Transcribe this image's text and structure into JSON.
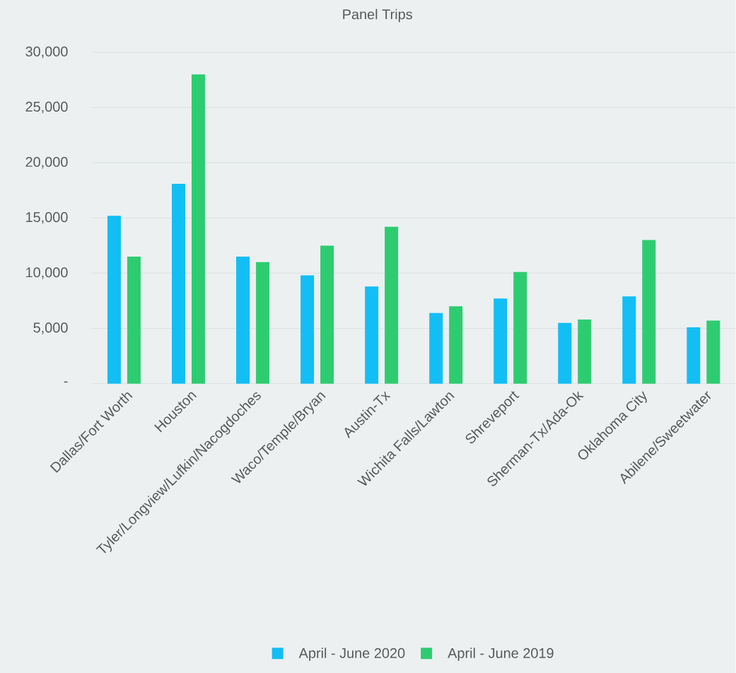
{
  "chart_data": {
    "type": "bar",
    "title": "Panel Trips",
    "categories": [
      "Dallas/Fort Worth",
      "Houston",
      "Tyler/Longview/Lufkin/Nacogdoches",
      "Waco/Temple/Bryan",
      "Austin-Tx",
      "Wichita Falls/Lawton",
      "Shreveport",
      "Sherman-Tx/Ada-Ok",
      "Oklahoma City",
      "Abilene/Sweetwater"
    ],
    "series": [
      {
        "name": "April - June 2020",
        "color": "#13bef5",
        "values": [
          15200,
          18100,
          11500,
          9800,
          8800,
          6400,
          7700,
          5500,
          7900,
          5100
        ]
      },
      {
        "name": "April - June 2019",
        "color": "#2ecc71",
        "values": [
          11500,
          28000,
          11000,
          12500,
          14200,
          7000,
          10100,
          5800,
          13000,
          5700
        ]
      }
    ],
    "ylim": [
      0,
      30000
    ],
    "yticks": [
      {
        "value": 0,
        "label": "-"
      },
      {
        "value": 5000,
        "label": "5,000"
      },
      {
        "value": 10000,
        "label": "10,000"
      },
      {
        "value": 15000,
        "label": "15,000"
      },
      {
        "value": 20000,
        "label": "20,000"
      },
      {
        "value": 25000,
        "label": "25,000"
      },
      {
        "value": 30000,
        "label": "30,000"
      }
    ],
    "grid": "y",
    "legend": "bottom"
  }
}
